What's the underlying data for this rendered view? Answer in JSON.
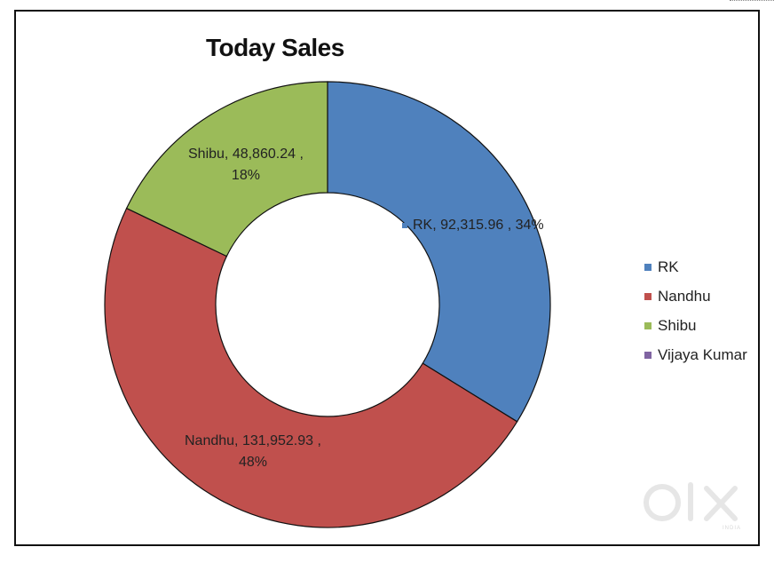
{
  "chart_data": {
    "type": "pie",
    "donut": true,
    "title": "Today Sales",
    "legend_position": "right",
    "slices": [
      {
        "name": "RK",
        "value": 92315.96,
        "percent": 34,
        "color": "#4F81BD",
        "label_line1": "RK,  92,315.96 , 34%",
        "label_line2": ""
      },
      {
        "name": "Nandhu",
        "value": 131952.93,
        "percent": 48,
        "color": "#C0504D",
        "label_line1": "Nandhu,  131,952.93 ,",
        "label_line2": "48%"
      },
      {
        "name": "Shibu",
        "value": 48860.24,
        "percent": 18,
        "color": "#9BBB59",
        "label_line1": "Shibu,  48,860.24 ,",
        "label_line2": "18%"
      },
      {
        "name": "Vijaya Kumar",
        "value": 0,
        "percent": 0,
        "color": "#8064A2",
        "label_line1": "",
        "label_line2": ""
      }
    ]
  },
  "legend": {
    "items": [
      "RK",
      "Nandhu",
      "Shibu",
      "Vijaya Kumar"
    ]
  },
  "watermark": {
    "text": "OLX",
    "subtext": "INDIA"
  }
}
